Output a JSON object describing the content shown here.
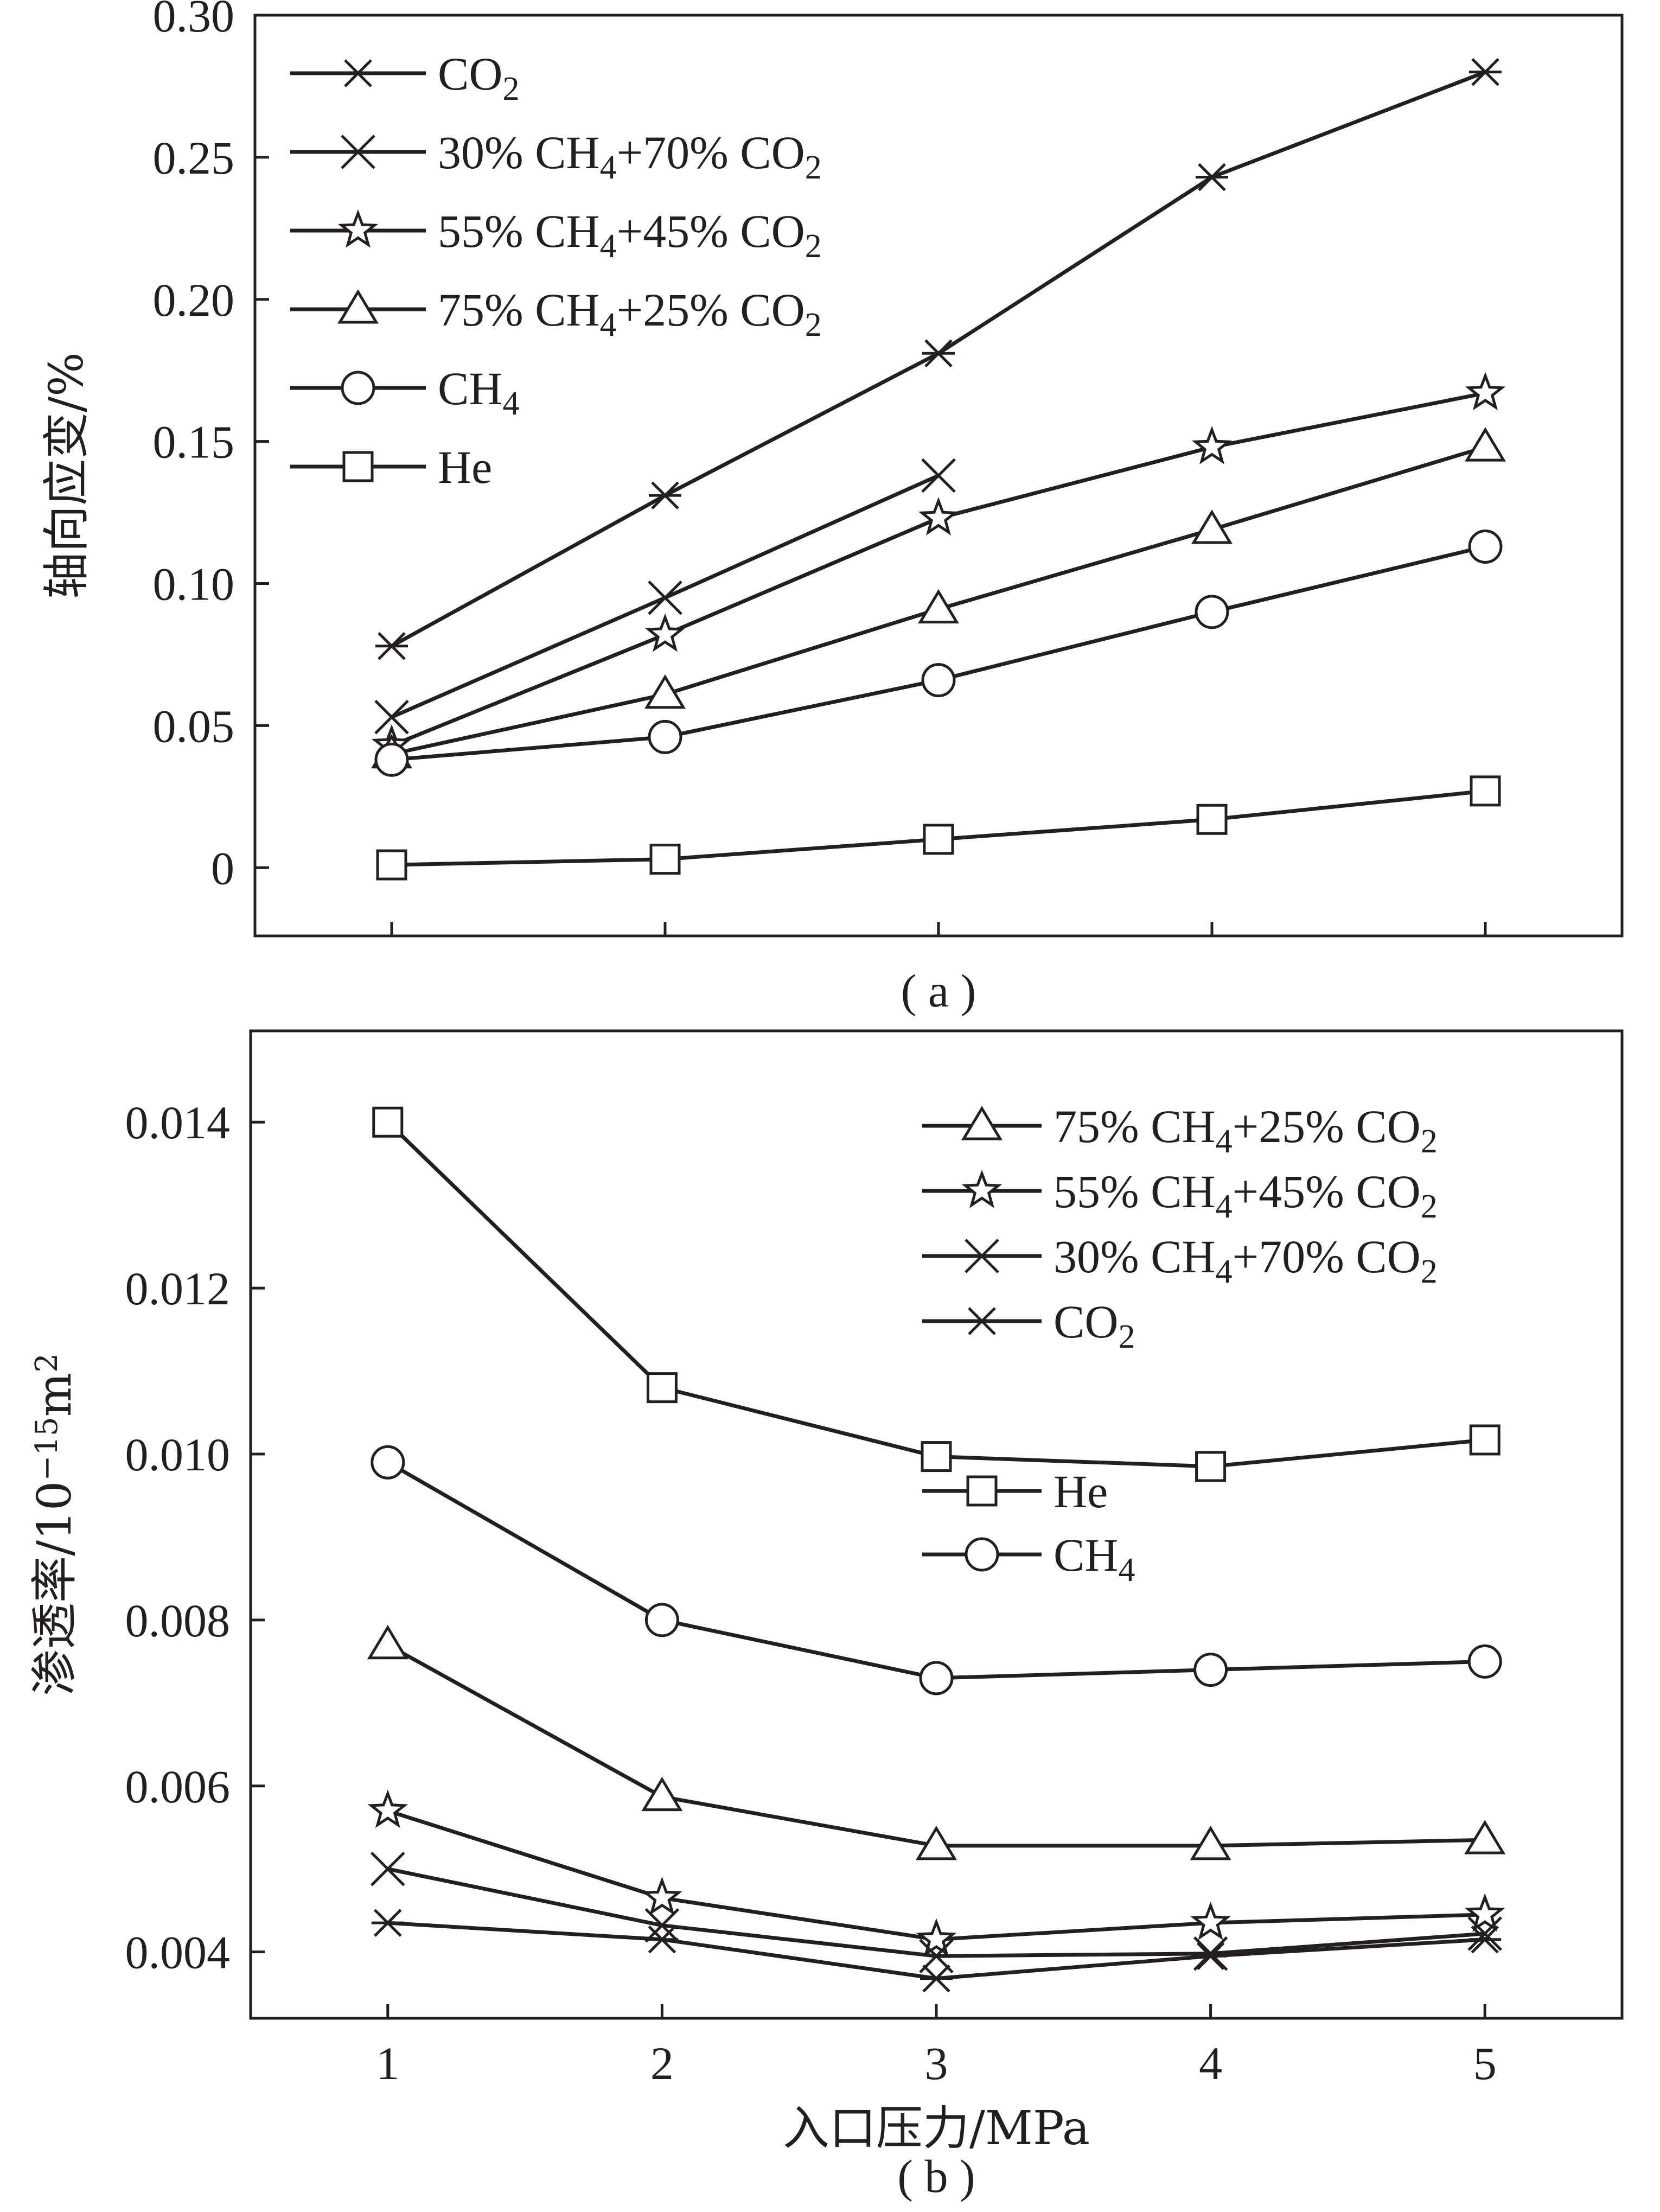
{
  "chart_data": [
    {
      "id": "a",
      "type": "line",
      "panel_label": "( a )",
      "ylabel": "轴向应变/%",
      "xlabel": "",
      "x": [
        1,
        2,
        3,
        4,
        5
      ],
      "xlim": [
        0.5,
        5.5
      ],
      "ylim": [
        -0.024,
        0.3
      ],
      "yticks": [
        0,
        0.05,
        0.1,
        0.15,
        0.2,
        0.25,
        0.3
      ],
      "ytick_labels": [
        "0",
        "0.05",
        "0.10",
        "0.15",
        "0.20",
        "0.25",
        "0.30"
      ],
      "show_xtick_labels": false,
      "grid": false,
      "legend_position": "top-left",
      "series": [
        {
          "key": "co2",
          "name": "CO2",
          "marker": "asterisk",
          "values": [
            0.078,
            0.131,
            0.181,
            0.243,
            0.28
          ]
        },
        {
          "key": "m30",
          "name": "30% CH4+70% CO2",
          "marker": "x",
          "values": [
            0.053,
            0.095,
            0.138,
            null,
            null
          ]
        },
        {
          "key": "m55",
          "name": "55% CH4+45% CO2",
          "marker": "star",
          "values": [
            0.043,
            0.082,
            0.123,
            0.148,
            0.167
          ]
        },
        {
          "key": "m75",
          "name": "75% CH4+25% CO2",
          "marker": "triangle",
          "values": [
            0.04,
            0.061,
            0.091,
            0.119,
            0.148
          ]
        },
        {
          "key": "ch4",
          "name": "CH4",
          "marker": "circle",
          "values": [
            0.038,
            0.046,
            0.066,
            0.09,
            0.113
          ]
        },
        {
          "key": "he",
          "name": "He",
          "marker": "square",
          "values": [
            0.001,
            0.003,
            0.01,
            0.017,
            0.027
          ]
        }
      ],
      "legend": [
        {
          "marker": "asterisk",
          "parts": [
            {
              "t": "CO"
            },
            {
              "t": "2",
              "sub": true
            }
          ]
        },
        {
          "marker": "x",
          "parts": [
            {
              "t": "30% CH"
            },
            {
              "t": "4",
              "sub": true
            },
            {
              "t": "+70% CO"
            },
            {
              "t": "2",
              "sub": true
            }
          ]
        },
        {
          "marker": "star",
          "parts": [
            {
              "t": "55% CH"
            },
            {
              "t": "4",
              "sub": true
            },
            {
              "t": "+45% CO"
            },
            {
              "t": "2",
              "sub": true
            }
          ]
        },
        {
          "marker": "triangle",
          "parts": [
            {
              "t": "75% CH"
            },
            {
              "t": "4",
              "sub": true
            },
            {
              "t": "+25% CO"
            },
            {
              "t": "2",
              "sub": true
            }
          ]
        },
        {
          "marker": "circle",
          "parts": [
            {
              "t": "CH"
            },
            {
              "t": "4",
              "sub": true
            }
          ]
        },
        {
          "marker": "square",
          "parts": [
            {
              "t": "He"
            }
          ]
        }
      ]
    },
    {
      "id": "b",
      "type": "line",
      "panel_label": "( b )",
      "ylabel_parts": [
        {
          "t": "渗透率/10"
        },
        {
          "t": "−15",
          "sup": true
        },
        {
          "t": "m"
        },
        {
          "t": "2",
          "sup": true
        }
      ],
      "xlabel": "入口压力/MPa",
      "x": [
        1,
        2,
        3,
        4,
        5
      ],
      "xlim": [
        0.5,
        5.5
      ],
      "ylim": [
        0.0032,
        0.0151
      ],
      "xticks": [
        1,
        2,
        3,
        4,
        5
      ],
      "xtick_labels": [
        "1",
        "2",
        "3",
        "4",
        "5"
      ],
      "yticks": [
        0.004,
        0.006,
        0.008,
        0.01,
        0.012,
        0.014
      ],
      "ytick_labels": [
        "0.004",
        "0.006",
        "0.008",
        "0.010",
        "0.012",
        "0.014"
      ],
      "show_xtick_labels": true,
      "grid": false,
      "legend_position": "top-right",
      "series": [
        {
          "key": "he",
          "name": "He",
          "marker": "square",
          "values": [
            0.014,
            0.0108,
            0.00997,
            0.00985,
            0.01017
          ]
        },
        {
          "key": "ch4",
          "name": "CH4",
          "marker": "circle",
          "values": [
            0.0099,
            0.008,
            0.0073,
            0.0074,
            0.0075
          ]
        },
        {
          "key": "m75",
          "name": "75% CH4+25% CO2",
          "marker": "triangle",
          "values": [
            0.0077,
            0.00587,
            0.00528,
            0.00528,
            0.00535
          ]
        },
        {
          "key": "m55",
          "name": "55% CH4+45% CO2",
          "marker": "star",
          "values": [
            0.0057,
            0.00465,
            0.00415,
            0.00435,
            0.00445
          ]
        },
        {
          "key": "m30",
          "name": "30% CH4+70% CO2",
          "marker": "x",
          "values": [
            0.005,
            0.00432,
            0.00395,
            0.00398,
            0.00422
          ]
        },
        {
          "key": "co2",
          "name": "CO2",
          "marker": "asterisk",
          "values": [
            0.00435,
            0.00415,
            0.00368,
            0.00395,
            0.00415
          ]
        }
      ],
      "legend": [
        {
          "marker": "triangle",
          "parts": [
            {
              "t": "75% CH"
            },
            {
              "t": "4",
              "sub": true
            },
            {
              "t": "+25% CO"
            },
            {
              "t": "2",
              "sub": true
            }
          ]
        },
        {
          "marker": "star",
          "parts": [
            {
              "t": "55% CH"
            },
            {
              "t": "4",
              "sub": true
            },
            {
              "t": "+45% CO"
            },
            {
              "t": "2",
              "sub": true
            }
          ]
        },
        {
          "marker": "x",
          "parts": [
            {
              "t": "30% CH"
            },
            {
              "t": "4",
              "sub": true
            },
            {
              "t": "+70% CO"
            },
            {
              "t": "2",
              "sub": true
            }
          ]
        },
        {
          "marker": "asterisk",
          "parts": [
            {
              "t": "CO"
            },
            {
              "t": "2",
              "sub": true
            }
          ]
        },
        {
          "marker": "square",
          "parts": [
            {
              "t": "He"
            }
          ]
        },
        {
          "marker": "circle",
          "parts": [
            {
              "t": "CH"
            },
            {
              "t": "4",
              "sub": true
            }
          ]
        }
      ]
    }
  ]
}
